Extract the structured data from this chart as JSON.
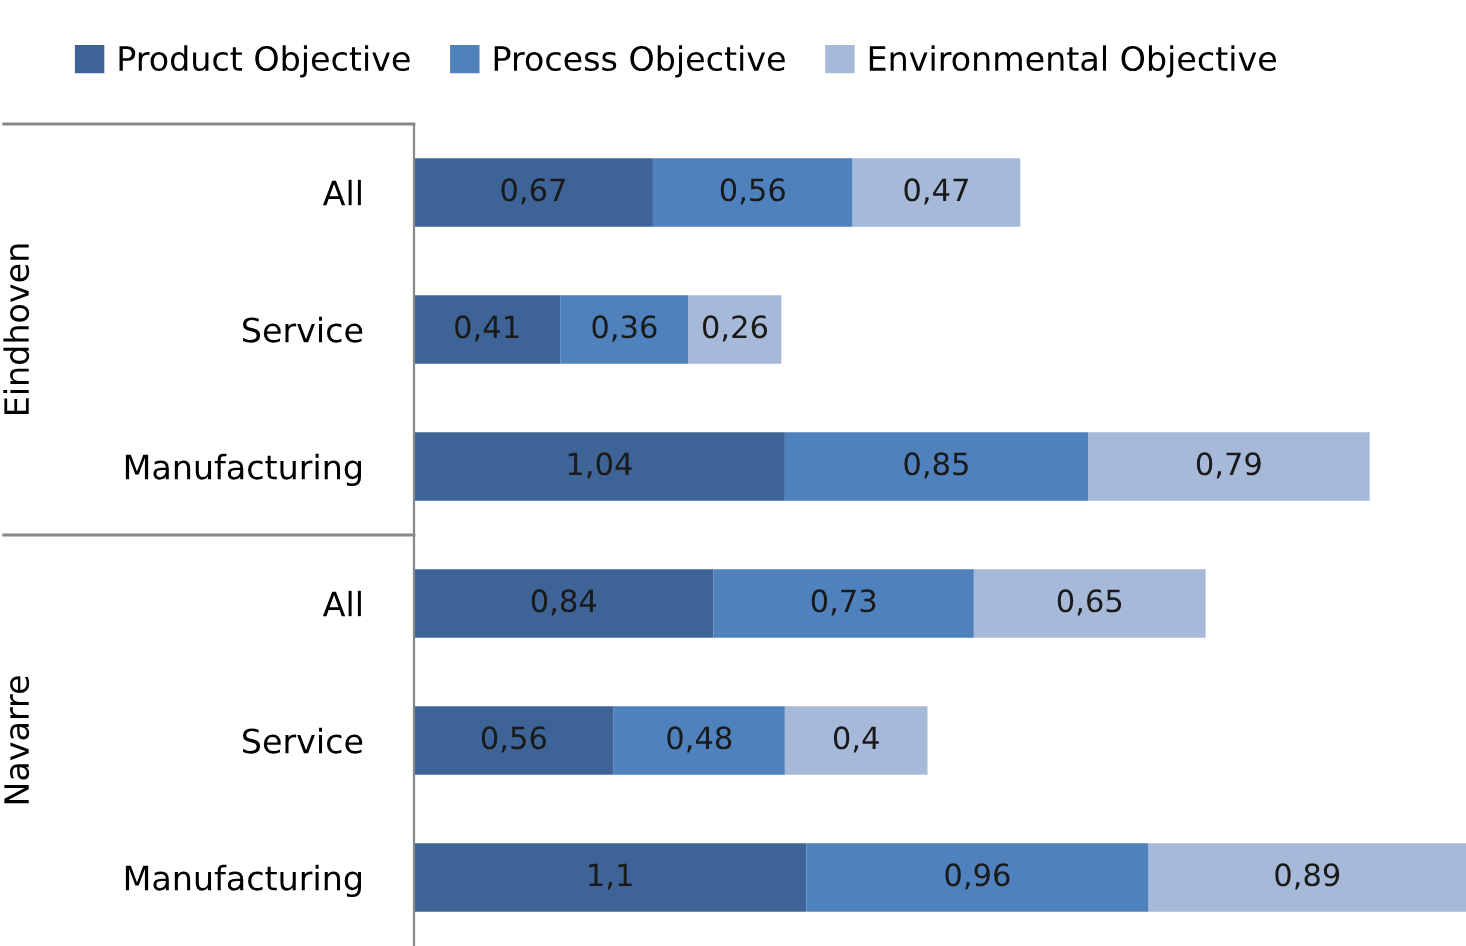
{
  "chart_data": {
    "type": "bar",
    "orientation": "horizontal",
    "stacked": true,
    "legend": "top",
    "grid": false,
    "categories": [
      "All",
      "Service",
      "Manufacturing",
      "All",
      "Service",
      "Manufacturing"
    ],
    "series": [
      {
        "name": "Product Objective",
        "color": "#3e6497",
        "values": [
          0.67,
          0.41,
          1.04,
          0.84,
          0.56,
          1.1
        ],
        "value_labels": [
          "0,67",
          "0,41",
          "1,04",
          "0,84",
          "0,56",
          "1,1"
        ]
      },
      {
        "name": "Process Objective",
        "color": "#4f81bd",
        "values": [
          0.56,
          0.36,
          0.85,
          0.73,
          0.48,
          0.96
        ],
        "value_labels": [
          "0,56",
          "0,36",
          "0,85",
          "0,73",
          "0,48",
          "0,96"
        ]
      },
      {
        "name": "Environmental Objective",
        "color": "#a7b9d9",
        "values": [
          0.47,
          0.26,
          0.79,
          0.65,
          0.4,
          0.89
        ],
        "value_labels": [
          "0,47",
          "0,26",
          "0,79",
          "0,65",
          "0,4",
          "0,89"
        ]
      }
    ],
    "annotations": [
      "Eindhoven",
      "Navarre"
    ]
  }
}
